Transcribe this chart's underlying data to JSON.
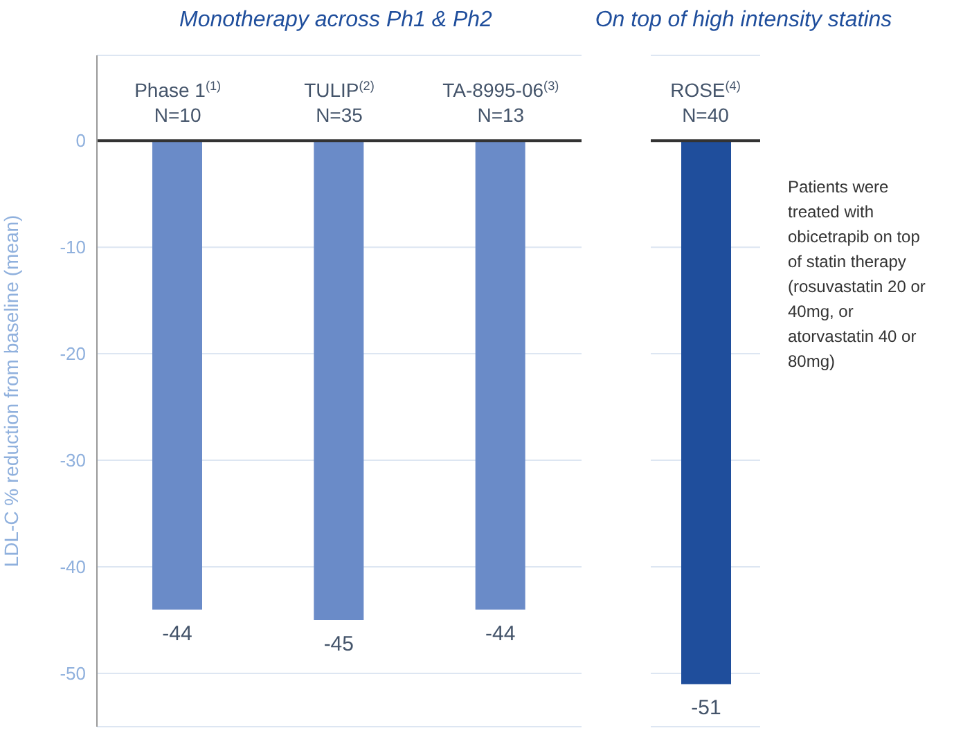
{
  "chart_data": [
    {
      "type": "bar",
      "title": "Monotherapy across Ph1 & Ph2",
      "ylabel": "LDL-C % reduction from baseline (mean)",
      "categories": [
        "Phase 1$^{(1)}$\nN=10",
        "TULIP$^{(2)}$\nN=35",
        "TA-8995-06$^{(3)}$\nN=13"
      ],
      "values": [
        -44,
        -45,
        -44
      ],
      "color": "#6a8bc8",
      "ylim": [
        -55,
        8
      ],
      "yticks": [
        0,
        -10,
        -20,
        -30,
        -40,
        -50
      ],
      "grid": "y",
      "data_labels": true,
      "legend": false
    },
    {
      "type": "bar",
      "title": "On top of high intensity statins",
      "categories": [
        "ROSE$^{(4)}$\nN=40"
      ],
      "values": [
        -51
      ],
      "color": "#1f4e9c",
      "ylim": [
        -55,
        8
      ],
      "yticks": [
        0,
        -10,
        -20,
        -30,
        -40,
        -50
      ],
      "grid": "y",
      "data_labels": true,
      "legend": false,
      "tick_labels": "x",
      "annotations": [
        "Patients were treated with obicetrapib on top of statin therapy (rosuvastatin 20 or 40mg, or atorvastatin 40 or 80mg)"
      ]
    }
  ]
}
